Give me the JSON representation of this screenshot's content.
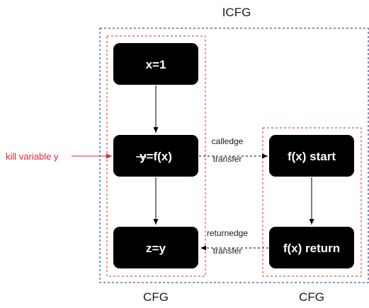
{
  "title": "ICFG",
  "colors": {
    "outer_border": "#1a1aa8",
    "inner_border": "#e0262f",
    "node_fill": "#000000",
    "node_text": "#ffffff",
    "annotation": "#e0262f",
    "line": "#000000"
  },
  "nodes": {
    "x_assign": "x=1",
    "y_call": "y=f(x)",
    "y_call_struck_var": "y",
    "y_call_rest": "=f(x)",
    "z_assign": "z=y",
    "f_start": "f(x) start",
    "f_return": "f(x) return"
  },
  "edges": {
    "call_edge": "calledge",
    "call_transfer": "transfer",
    "return_edge": "returnedge",
    "return_transfer": "transfer"
  },
  "annotation": {
    "label": "kill variable y"
  },
  "cfg_labels": {
    "main": "CFG",
    "function": "CFG"
  }
}
